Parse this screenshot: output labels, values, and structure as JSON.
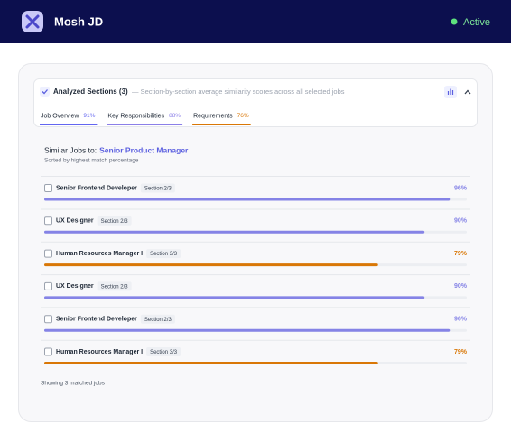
{
  "header": {
    "title": "Mosh JD",
    "status": "Active"
  },
  "panel": {
    "title": "Analyzed Sections (3)",
    "description": "— Section-by-section average similarity scores across all selected jobs",
    "tabs": [
      {
        "label": "Job Overview",
        "score": "91%",
        "color": "#6366f1"
      },
      {
        "label": "Key Responsibilities",
        "score": "88%",
        "color": "#8b7fe8"
      },
      {
        "label": "Requirements",
        "score": "76%",
        "color": "#d97706"
      }
    ]
  },
  "similar": {
    "prefix": "Similar Jobs to:",
    "target": "Senior Product Manager",
    "subtitle": "Sorted by highest match percentage",
    "rows": [
      {
        "name": "Senior Frontend Developer",
        "section": "Section 2/3",
        "match": 96,
        "match_label": "96%",
        "color": "#8583e6"
      },
      {
        "name": "UX Designer",
        "section": "Section 2/3",
        "match": 90,
        "match_label": "90%",
        "color": "#8583e6"
      },
      {
        "name": "Human Resources Manager I",
        "section": "Section 3/3",
        "match": 79,
        "match_label": "79%",
        "color": "#d97706"
      },
      {
        "name": "UX Designer",
        "section": "Section 2/3",
        "match": 90,
        "match_label": "90%",
        "color": "#8583e6"
      },
      {
        "name": "Senior Frontend Developer",
        "section": "Section 2/3",
        "match": 96,
        "match_label": "96%",
        "color": "#8583e6"
      },
      {
        "name": "Human Resources Manager I",
        "section": "Section 3/3",
        "match": 79,
        "match_label": "79%",
        "color": "#d97706"
      }
    ],
    "footer": "Showing 3 matched jobs"
  }
}
